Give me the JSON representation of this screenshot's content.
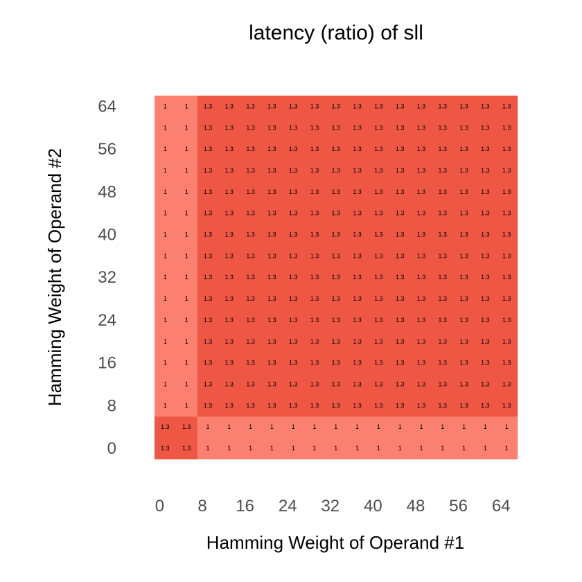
{
  "chart_data": {
    "type": "heatmap",
    "title": "latency (ratio) of sll",
    "xlabel": "Hamming Weight of Operand #1",
    "ylabel": "Hamming Weight of Operand #2",
    "x": [
      0,
      4,
      8,
      12,
      16,
      20,
      24,
      28,
      32,
      36,
      40,
      44,
      48,
      52,
      56,
      60,
      64
    ],
    "y": [
      0,
      4,
      8,
      12,
      16,
      20,
      24,
      28,
      32,
      36,
      40,
      44,
      48,
      52,
      56,
      60,
      64
    ],
    "xticks": [
      0,
      8,
      16,
      24,
      32,
      40,
      48,
      56,
      64
    ],
    "yticks": [
      0,
      8,
      16,
      24,
      32,
      40,
      48,
      56,
      64
    ],
    "rule": "value is 1.3 when exactly one of (x < 8) and (y < 8) is false-pattern matched as shown; 1 otherwise",
    "low_value": 1,
    "high_value": 1.3,
    "colors": {
      "low": "#fb8070",
      "high": "#ef5745"
    },
    "grid": false,
    "legend": "none"
  }
}
